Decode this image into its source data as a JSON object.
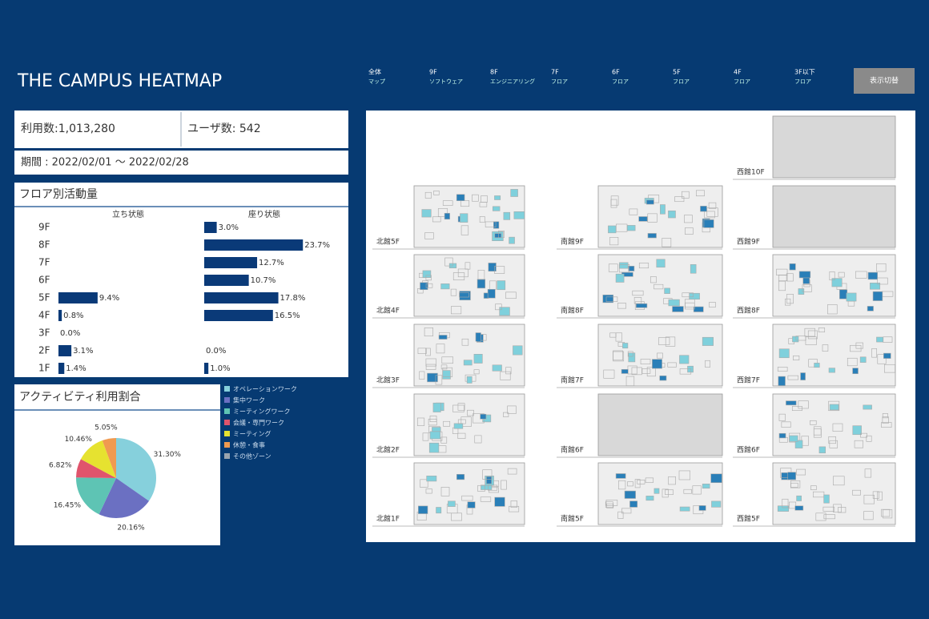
{
  "header": {
    "title": "THE CAMPUS  HEATMAP",
    "nav": [
      {
        "label": "全体",
        "sub": "マップ"
      },
      {
        "label": "9F",
        "sub": "ソフトウェア"
      },
      {
        "label": "8F",
        "sub": "エンジニアリング"
      },
      {
        "label": "7F",
        "sub": "フロア"
      },
      {
        "label": "6F",
        "sub": "フロア"
      },
      {
        "label": "5F",
        "sub": "フロア"
      },
      {
        "label": "4F",
        "sub": "フロア"
      },
      {
        "label": "3F以下",
        "sub": "フロア"
      }
    ],
    "button": "表示切替"
  },
  "summary": {
    "usage": "利用数:1,013,280",
    "users": "ユーザ数: 542",
    "period": "期間 : 2022/02/01 〜 2022/02/28"
  },
  "floor_activity": {
    "title": "フロア別活動量",
    "floors": [
      "9F",
      "8F",
      "7F",
      "6F",
      "5F",
      "4F",
      "3F",
      "2F",
      "1F"
    ],
    "columns": [
      {
        "name": "立ち状態",
        "values": [
          null,
          null,
          null,
          null,
          9.4,
          0.8,
          0.0,
          3.1,
          1.4
        ],
        "value_labels": [
          null,
          null,
          null,
          null,
          "9.4%",
          "0.8%",
          "0.0%",
          "3.1%",
          "1.4%"
        ]
      },
      {
        "name": "座り状態",
        "values": [
          3.0,
          23.7,
          12.7,
          10.7,
          17.8,
          16.5,
          null,
          0.0,
          1.0
        ],
        "value_labels": [
          "3.0%",
          "23.7%",
          "12.7%",
          "10.7%",
          "17.8%",
          "16.5%",
          null,
          "0.0%",
          "1.0%"
        ]
      }
    ]
  },
  "activity_share": {
    "title": "アクティビティ利用割合",
    "labels": [
      "オペレーションワーク",
      "集中ワーク",
      "ミーティングワーク",
      "会議・専門ワーク",
      "ミーティング",
      "休憩・食事",
      "その他ゾーン"
    ],
    "colors": [
      "#86d0dc",
      "#6b70c2",
      "#5ec4b4",
      "#e0546c",
      "#e6e230",
      "#f09a50",
      "#9aa4ae"
    ],
    "values": [
      31.3,
      20.16,
      16.45,
      6.82,
      10.46,
      5.05,
      null
    ],
    "value_labels": [
      "31.30%",
      "20.16%",
      "16.45%",
      "6.82%",
      "10.46%",
      "5.05%",
      null
    ]
  },
  "heatmaps": {
    "maps": [
      {
        "label": "西館10F"
      },
      {
        "label": "北館5F"
      },
      {
        "label": "南館9F"
      },
      {
        "label": "西館9F"
      },
      {
        "label": "北館4F"
      },
      {
        "label": "南館8F"
      },
      {
        "label": "西館8F"
      },
      {
        "label": "北館3F"
      },
      {
        "label": "南館7F"
      },
      {
        "label": "西館7F"
      },
      {
        "label": "北館2F"
      },
      {
        "label": "南館6F"
      },
      {
        "label": "西館6F"
      },
      {
        "label": "北館1F"
      },
      {
        "label": "南館5F"
      },
      {
        "label": "西館5F"
      }
    ]
  }
}
